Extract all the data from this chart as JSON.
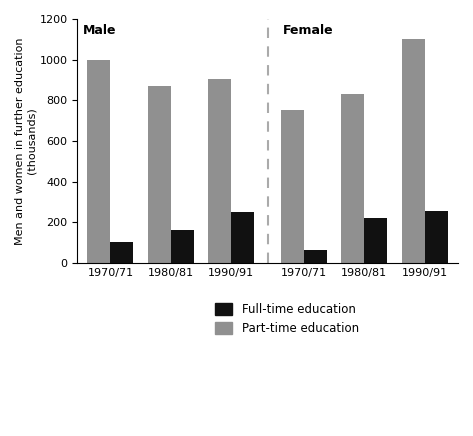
{
  "male_fulltime": [
    100,
    160,
    250
  ],
  "male_parttime": [
    1000,
    870,
    905
  ],
  "female_fulltime": [
    65,
    220,
    255
  ],
  "female_parttime": [
    750,
    830,
    1100
  ],
  "years": [
    "1970/71",
    "1980/81",
    "1990/91"
  ],
  "ylabel": "Men and women in further education\n(thousands)",
  "ylim": [
    0,
    1200
  ],
  "yticks": [
    0,
    200,
    400,
    600,
    800,
    1000,
    1200
  ],
  "male_label": "Male",
  "female_label": "Female",
  "fulltime_color": "#111111",
  "parttime_color": "#909090",
  "legend_fulltime": "Full-time education",
  "legend_parttime": "Part-time education",
  "bar_width": 0.38,
  "divider_color": "#aaaaaa"
}
